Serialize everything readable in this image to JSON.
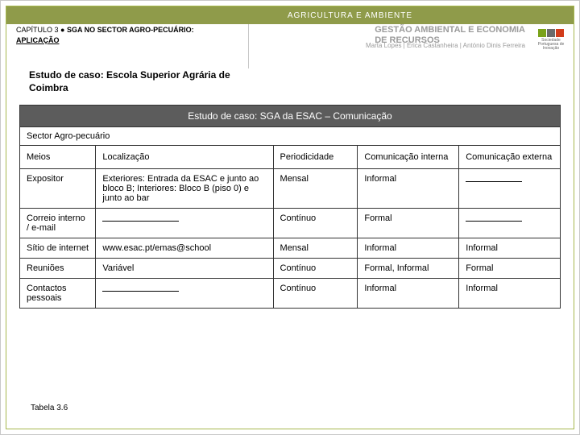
{
  "topbar": {
    "label": "AGRICULTURA E AMBIENTE"
  },
  "chapter": {
    "prefix": "CAPÍTULO 3 ● ",
    "title": "SGA NO SECTOR AGRO-PECUÁRIO:",
    "sub": "APLICAÇÃO"
  },
  "headerRight": {
    "line1": "GESTÃO AMBIENTAL E ECONOMIA",
    "line2": "DE RECURSOS"
  },
  "authors": "Marta Lopes | Érica Castanheira | António Dinis Ferreira",
  "caseTitle": "Estudo de caso: Escola Superior Agrária de Coimbra",
  "table": {
    "title": "Estudo de caso: SGA da ESAC – Comunicação",
    "sector": "Sector Agro-pecuário",
    "columns": [
      "Meios",
      "Localização",
      "Periodicidade",
      "Comunicação interna",
      "Comunicação externa"
    ],
    "rows": [
      {
        "c1": "Expositor",
        "c2": "Exteriores: Entrada da ESAC e junto ao bloco B; Interiores: Bloco B (piso 0) e junto ao bar",
        "c3": "Mensal",
        "c4": "Informal",
        "c5": "__blank__"
      },
      {
        "c1": "Correio interno / e-mail",
        "c2": "__blankw__",
        "c3": "Contínuo",
        "c4": "Formal",
        "c5": "__blank__"
      },
      {
        "c1": "Sítio de internet",
        "c2": "www.esac.pt/emas@school",
        "c3": "Mensal",
        "c4": "Informal",
        "c5": "Informal"
      },
      {
        "c1": "Reuniões",
        "c2": "Variável",
        "c3": "Contínuo",
        "c4": "Formal, Informal",
        "c5": "Formal"
      },
      {
        "c1": "Contactos pessoais",
        "c2": "__blankw__",
        "c3": "Contínuo",
        "c4": "Informal",
        "c5": "Informal"
      }
    ],
    "label": "Tabela 3.6"
  },
  "logo": {
    "caption": "Sociedade Portuguesa de Inovação"
  }
}
